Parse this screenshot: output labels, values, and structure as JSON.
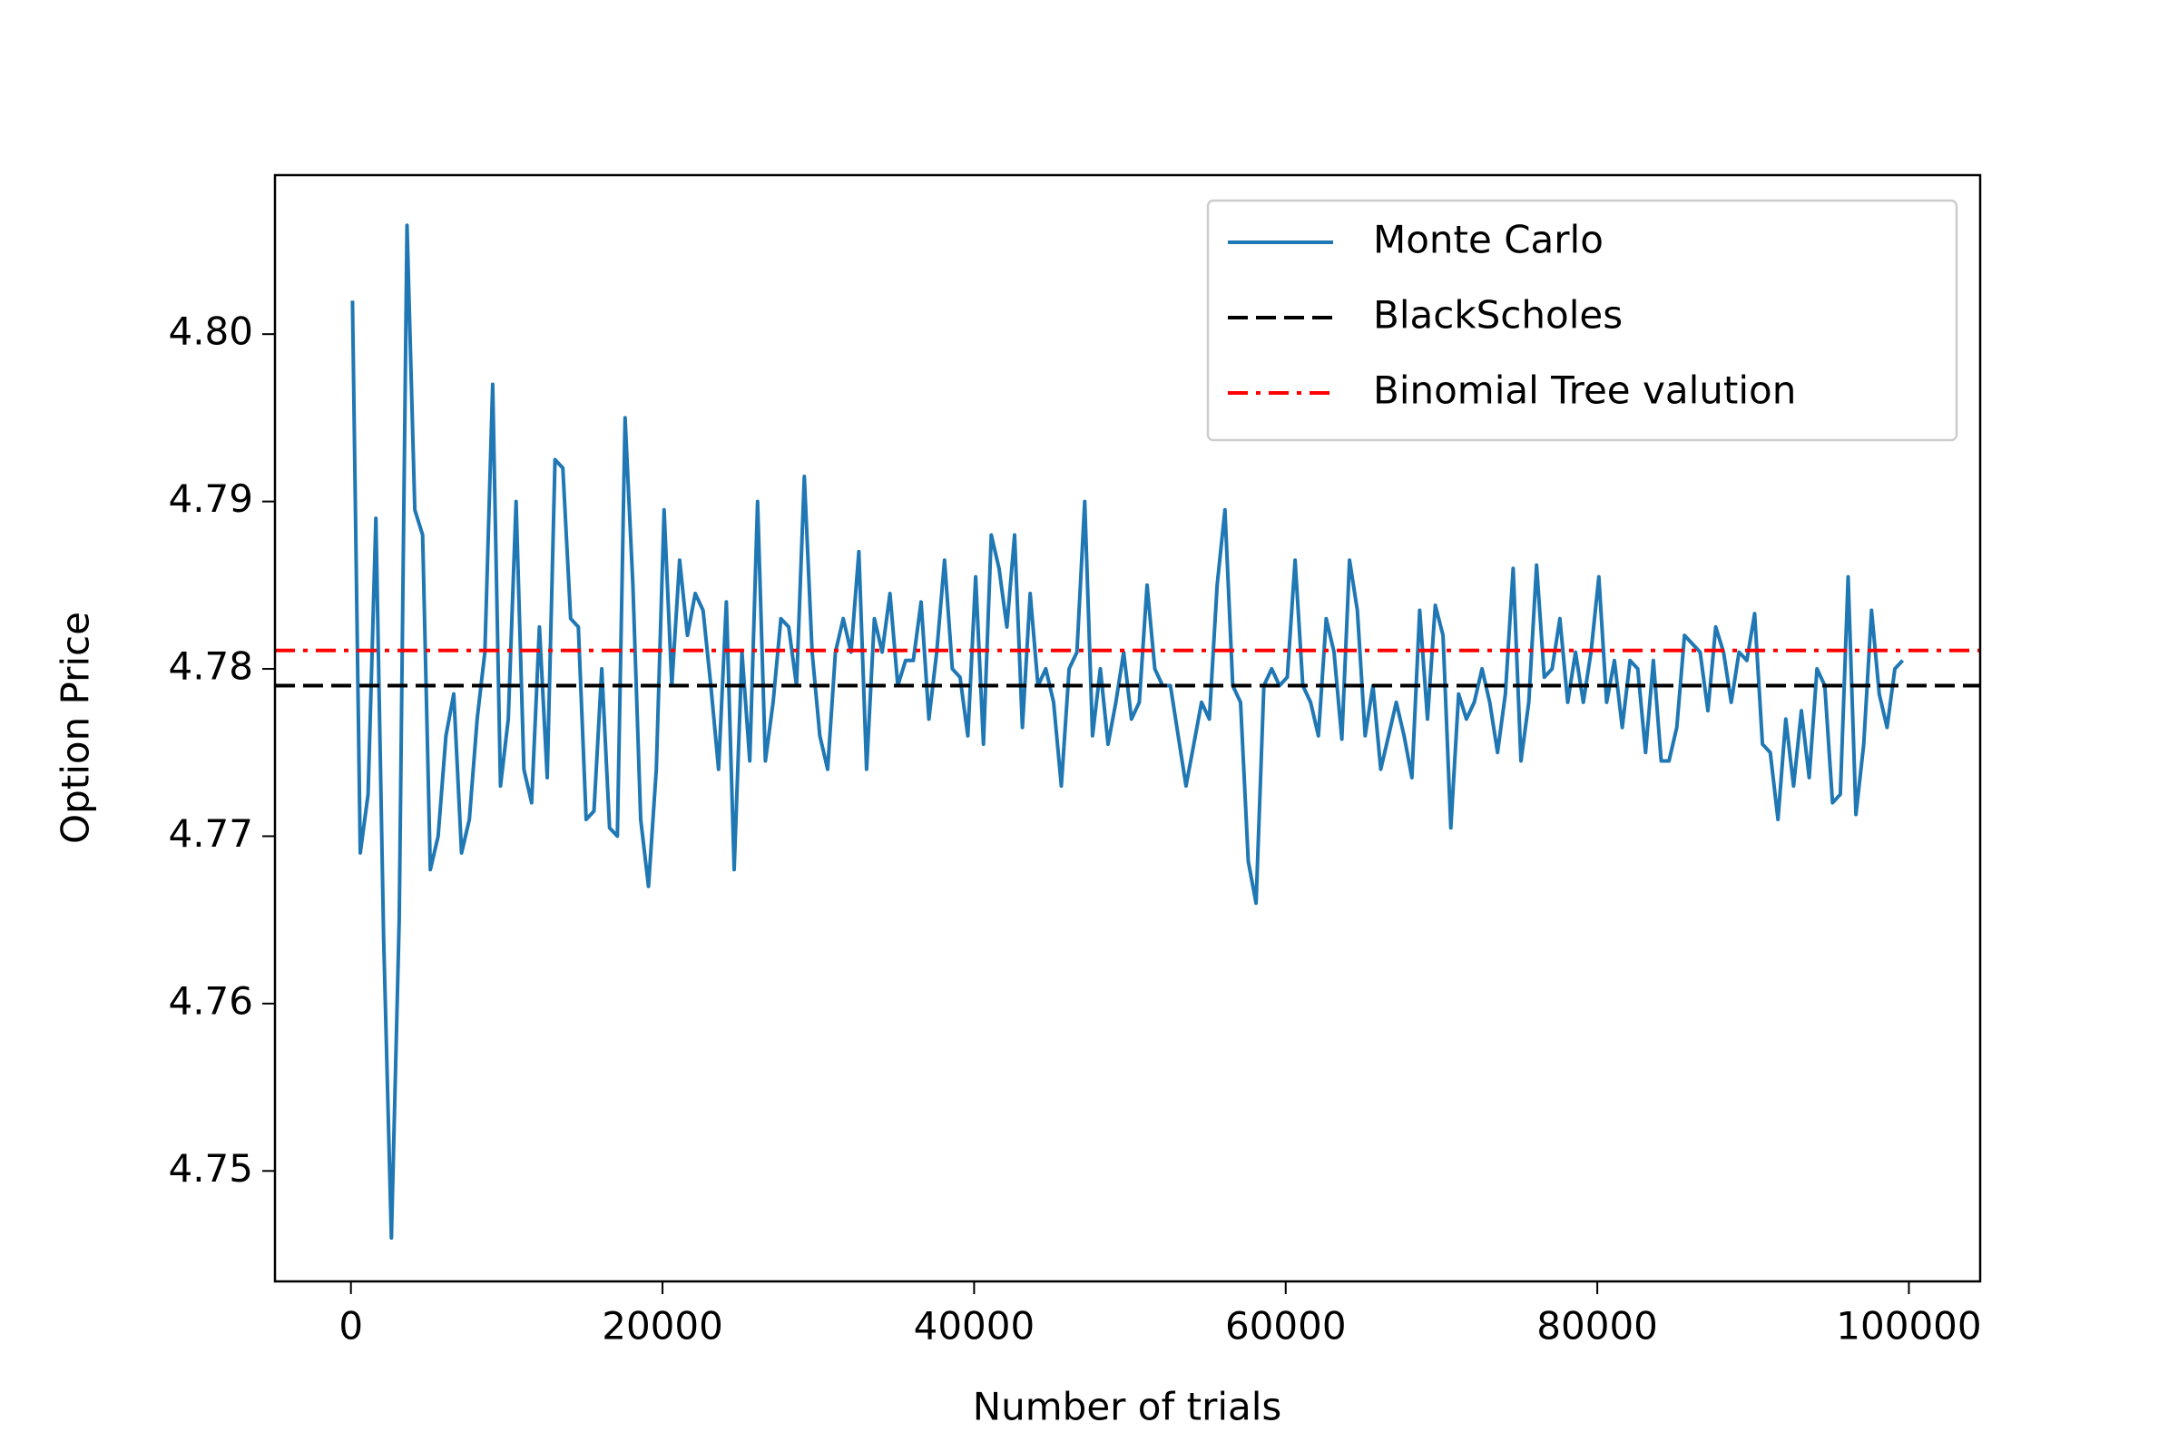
{
  "chart_data": {
    "type": "line",
    "xlabel": "Number of trials",
    "ylabel": "Option Price",
    "x": [
      100,
      600,
      1100,
      1600,
      2100,
      2600,
      3100,
      3600,
      4100,
      4600,
      5100,
      5600,
      6100,
      6600,
      7100,
      7600,
      8100,
      8600,
      9100,
      9600,
      10100,
      10600,
      11100,
      11600,
      12100,
      12600,
      13100,
      13600,
      14100,
      14600,
      15100,
      15600,
      16100,
      16600,
      17100,
      17600,
      18100,
      18600,
      19100,
      19600,
      20100,
      20600,
      21100,
      21600,
      22100,
      22600,
      23100,
      23600,
      24100,
      24600,
      25100,
      25600,
      26100,
      26600,
      27100,
      27600,
      28100,
      28600,
      29100,
      29600,
      30100,
      30600,
      31100,
      31600,
      32100,
      32600,
      33100,
      33600,
      34100,
      34600,
      35100,
      35600,
      36100,
      36600,
      37100,
      37600,
      38100,
      38600,
      39100,
      39600,
      40100,
      40600,
      41100,
      41600,
      42100,
      42600,
      43100,
      43600,
      44100,
      44600,
      45100,
      45600,
      46100,
      46600,
      47100,
      47600,
      48100,
      48600,
      49100,
      49600,
      50100,
      50600,
      51100,
      51600,
      52100,
      52600,
      53100,
      53600,
      54100,
      54600,
      55100,
      55600,
      56100,
      56600,
      57100,
      57600,
      58100,
      58600,
      59100,
      59600,
      60100,
      60600,
      61100,
      61600,
      62100,
      62600,
      63100,
      63600,
      64100,
      64600,
      65100,
      65600,
      66100,
      66600,
      67100,
      67600,
      68100,
      68600,
      69100,
      69600,
      70100,
      70600,
      71100,
      71600,
      72100,
      72600,
      73100,
      73600,
      74100,
      74600,
      75100,
      75600,
      76100,
      76600,
      77100,
      77600,
      78100,
      78600,
      79100,
      79600,
      80100,
      80600,
      81100,
      81600,
      82100,
      82600,
      83100,
      83600,
      84100,
      84600,
      85100,
      85600,
      86100,
      86600,
      87100,
      87600,
      88100,
      88600,
      89100,
      89600,
      90100,
      90600,
      91100,
      91600,
      92100,
      92600,
      93100,
      93600,
      94100,
      94600,
      95100,
      95600,
      96100,
      96600,
      97100,
      97600,
      98100,
      98600,
      99100,
      99600
    ],
    "series": [
      {
        "name": "Monte Carlo",
        "color": "#1f77b4",
        "values": [
          4.802,
          4.769,
          4.7725,
          4.789,
          4.764,
          4.746,
          4.765,
          4.8065,
          4.7895,
          4.788,
          4.768,
          4.77,
          4.776,
          4.7785,
          4.769,
          4.771,
          4.777,
          4.781,
          4.797,
          4.773,
          4.777,
          4.79,
          4.774,
          4.772,
          4.7825,
          4.7735,
          4.7925,
          4.792,
          4.783,
          4.7825,
          4.771,
          4.7715,
          4.78,
          4.7705,
          4.77,
          4.795,
          4.785,
          4.771,
          4.767,
          4.774,
          4.7895,
          4.779,
          4.7865,
          4.782,
          4.7845,
          4.7835,
          4.779,
          4.774,
          4.784,
          4.768,
          4.781,
          4.7745,
          4.79,
          4.7745,
          4.778,
          4.783,
          4.7825,
          4.779,
          4.7915,
          4.781,
          4.776,
          4.774,
          4.781,
          4.783,
          4.781,
          4.787,
          4.774,
          4.783,
          4.781,
          4.7845,
          4.779,
          4.7805,
          4.7805,
          4.784,
          4.777,
          4.781,
          4.7865,
          4.78,
          4.7795,
          4.776,
          4.7855,
          4.7755,
          4.788,
          4.786,
          4.7825,
          4.788,
          4.7765,
          4.7845,
          4.779,
          4.78,
          4.778,
          4.773,
          4.78,
          4.781,
          4.79,
          4.776,
          4.78,
          4.7755,
          4.778,
          4.781,
          4.777,
          4.778,
          4.785,
          4.78,
          4.779,
          4.779,
          4.776,
          4.773,
          4.7755,
          4.778,
          4.777,
          4.785,
          4.7895,
          4.779,
          4.778,
          4.7685,
          4.766,
          4.779,
          4.78,
          4.779,
          4.7795,
          4.7865,
          4.779,
          4.778,
          4.776,
          4.783,
          4.781,
          4.7758,
          4.7865,
          4.7835,
          4.776,
          4.779,
          4.774,
          4.776,
          4.778,
          4.776,
          4.7735,
          4.7835,
          4.777,
          4.7838,
          4.782,
          4.7705,
          4.7785,
          4.777,
          4.778,
          4.78,
          4.778,
          4.775,
          4.7785,
          4.786,
          4.7745,
          4.778,
          4.7862,
          4.7795,
          4.78,
          4.783,
          4.778,
          4.781,
          4.778,
          4.781,
          4.7855,
          4.778,
          4.7805,
          4.7765,
          4.7805,
          4.78,
          4.775,
          4.7805,
          4.7745,
          4.7745,
          4.7765,
          4.782,
          4.7815,
          4.781,
          4.7775,
          4.7825,
          4.781,
          4.778,
          4.781,
          4.7805,
          4.7833,
          4.7755,
          4.775,
          4.771,
          4.777,
          4.773,
          4.7775,
          4.7735,
          4.78,
          4.779,
          4.772,
          4.7725,
          4.7855,
          4.7713,
          4.7755,
          4.7835,
          4.7785,
          4.7765,
          4.78,
          4.7805
        ]
      }
    ],
    "hlines": [
      {
        "name": "BlackScholes",
        "color": "#000000",
        "style": "dashed",
        "value": 4.779
      },
      {
        "name": "Binomial Tree valution",
        "color": "#ff0000",
        "style": "dashdot",
        "value": 4.7811
      }
    ],
    "xlim": [
      -4875,
      104575
    ],
    "ylim": [
      4.7434,
      4.8095
    ],
    "xticks": [
      0,
      20000,
      40000,
      60000,
      80000,
      100000
    ],
    "yticks": [
      4.75,
      4.76,
      4.77,
      4.78,
      4.79,
      {
        "value": 4.8,
        "label": "4.80"
      }
    ],
    "legend": "upper right"
  }
}
